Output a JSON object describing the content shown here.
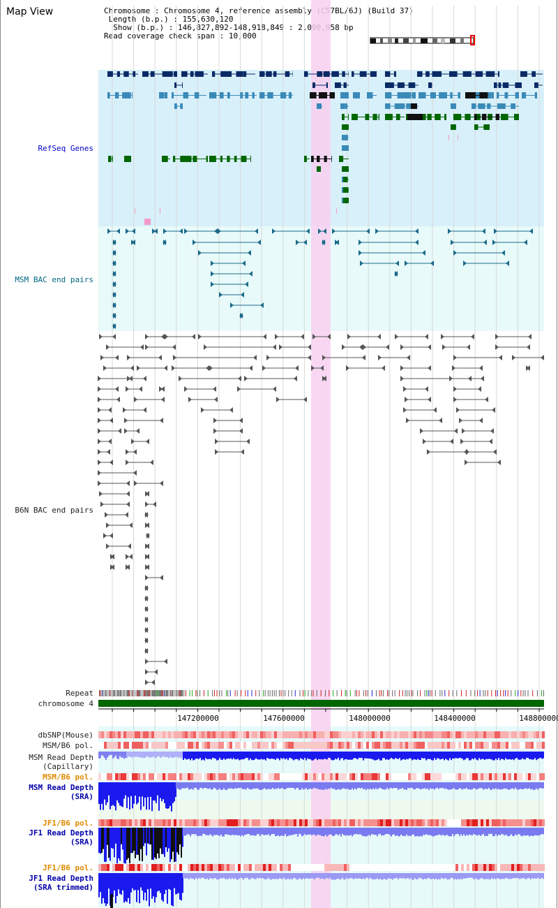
{
  "title": "Map View",
  "info": {
    "chromosome_label": "Chromosome",
    "chromosome_value": "Chromosome 4, reference assembly (C57BL/6J) (Build 37)",
    "length_label": "Length (b.p.)",
    "length_value": "155,630,120",
    "show_label": "Show (b.p.)",
    "show_value": "146,827,892-148,918,849 : 2,090,958 bp",
    "coverage_label": "Read coverage check span",
    "coverage_value": "10,000"
  },
  "tracks": {
    "refseq": "RefSeq Genes",
    "msm_bac": "MSM BAC end pairs",
    "b6n_bac": "B6N BAC end pairs",
    "repeat": "Repeat",
    "chromosome": "chromosome 4",
    "dbsnp": "dbSNP(Mouse)",
    "msm_pol1": "MSM/B6 pol.",
    "msm_depth_cap1": "MSM Read Depth",
    "msm_depth_cap2": "(Capillary)",
    "msm_pol2": "MSM/B6 pol.",
    "msm_depth_sra1": "MSM Read Depth",
    "msm_depth_sra2": "(SRA)",
    "jf1_pol1": "JF1/B6 pol.",
    "jf1_depth_sra1": "JF1 Read Depth",
    "jf1_depth_sra2": "(SRA)",
    "jf1_pol2": "JF1/B6 pol.",
    "jf1_depth_trim1": "JF1 Read Depth",
    "jf1_depth_trim2": "(SRA trimmed)"
  },
  "axis": {
    "ticks": [
      "147200000",
      "147600000",
      "148000000",
      "148400000",
      "148800000"
    ]
  },
  "colors": {
    "refseq_bg": "#d8f0fa",
    "msm_bg": "#e8fafa",
    "highlight": "#f8d0f0",
    "gene_dark": "#0a2a66",
    "gene_mid": "#3a8ab8",
    "gene_green": "#006600",
    "bac_teal": "#1a6a8a",
    "bac_grey": "#555555",
    "chrom_green": "#006600",
    "depth_blue": "#1a1aee",
    "depth_light": "#7a7af0"
  }
}
